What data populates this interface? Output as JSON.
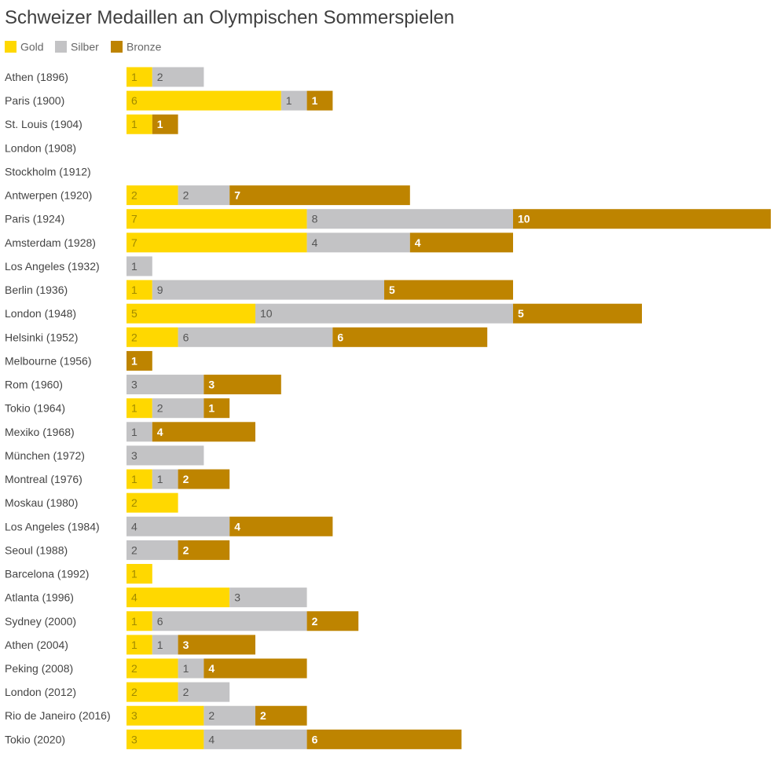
{
  "chart_data": {
    "type": "bar",
    "orientation": "horizontal",
    "stacked": true,
    "title": "Schweizer Medaillen an Olympischen Sommerspielen",
    "legend_position": "top-left",
    "grid": false,
    "categories": [
      "Athen (1896)",
      "Paris (1900)",
      "St. Louis (1904)",
      "London (1908)",
      "Stockholm (1912)",
      "Antwerpen (1920)",
      "Paris (1924)",
      "Amsterdam (1928)",
      "Los Angeles (1932)",
      "Berlin (1936)",
      "London (1948)",
      "Helsinki (1952)",
      "Melbourne (1956)",
      "Rom (1960)",
      "Tokio (1964)",
      "Mexiko (1968)",
      "München (1972)",
      "Montreal (1976)",
      "Moskau (1980)",
      "Los Angeles (1984)",
      "Seoul (1988)",
      "Barcelona (1992)",
      "Atlanta (1996)",
      "Sydney (2000)",
      "Athen (2004)",
      "Peking (2008)",
      "London (2012)",
      "Rio de Janeiro (2016)",
      "Tokio (2020)"
    ],
    "series": [
      {
        "name": "Gold",
        "color": "#FFD800",
        "label_color": "#a08a00",
        "values": [
          1,
          6,
          1,
          0,
          0,
          2,
          7,
          7,
          0,
          1,
          5,
          2,
          0,
          0,
          1,
          0,
          0,
          1,
          2,
          0,
          0,
          1,
          4,
          1,
          1,
          2,
          2,
          3,
          3
        ]
      },
      {
        "name": "Silber",
        "color": "#C3C3C5",
        "label_color": "#555555",
        "values": [
          2,
          1,
          0,
          0,
          0,
          2,
          8,
          4,
          1,
          9,
          10,
          6,
          0,
          3,
          2,
          1,
          3,
          1,
          0,
          4,
          2,
          0,
          3,
          6,
          1,
          1,
          2,
          2,
          4
        ]
      },
      {
        "name": "Bronze",
        "color": "#BE8400",
        "label_color": "#ffffff",
        "values": [
          0,
          1,
          1,
          0,
          0,
          7,
          10,
          4,
          0,
          5,
          5,
          6,
          1,
          3,
          1,
          4,
          0,
          2,
          0,
          4,
          2,
          0,
          0,
          2,
          3,
          4,
          0,
          2,
          6
        ]
      }
    ],
    "xlim": [
      0,
      25
    ]
  }
}
